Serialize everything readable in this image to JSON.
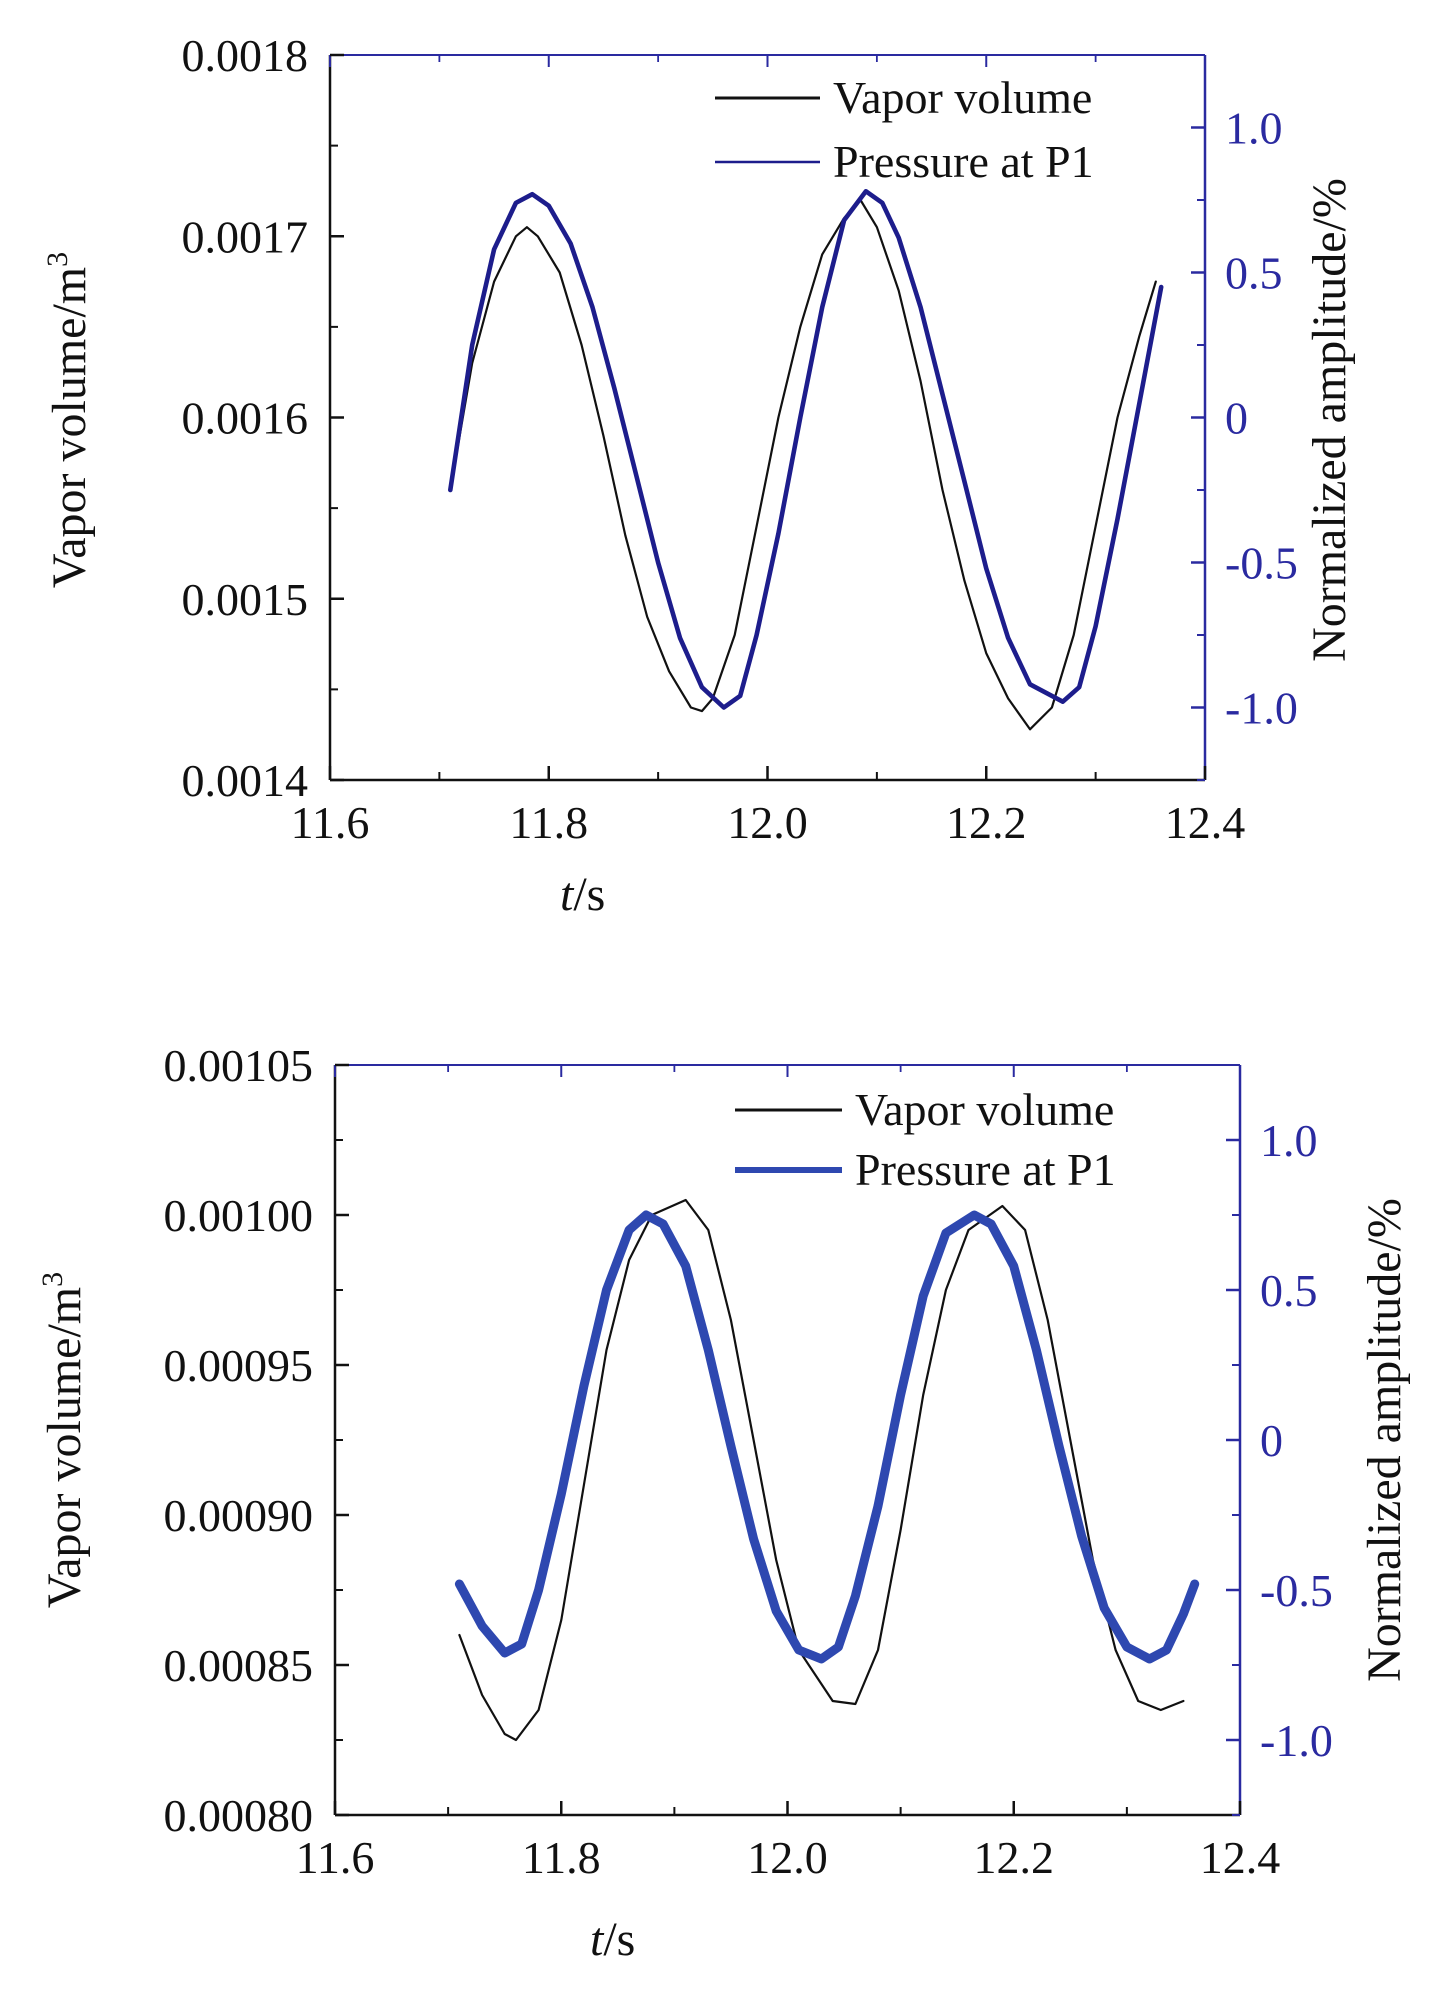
{
  "chart_data": [
    {
      "type": "line",
      "title": "",
      "xlabel": "t/s",
      "xlabel_parts": {
        "var": "t",
        "unit": "/s"
      },
      "ylabel": "Vapor volume/m3",
      "ylabel_parts": {
        "text": "Vapor volume/m",
        "sup": "3"
      },
      "y2label": "Normalized amplitude/%",
      "xlim": [
        11.6,
        12.4
      ],
      "ylim": [
        0.0014,
        0.0018
      ],
      "y2lim": [
        -1.25,
        1.25
      ],
      "xticks": [
        "11.6",
        "11.8",
        "12.0",
        "12.2",
        "12.4"
      ],
      "yticks": [
        "0.0018",
        "0.0017",
        "0.0016",
        "0.0015",
        "0.0014"
      ],
      "y2ticks": [
        "1.0",
        "0.5",
        "0",
        "-0.5",
        "-1.0"
      ],
      "legend_position": "top-right",
      "grid": false,
      "series": [
        {
          "name": "Vapor volume",
          "axis": "left",
          "color": "#111111",
          "points": [
            [
              11.71,
              0.00156
            ],
            [
              11.73,
              0.00163
            ],
            [
              11.75,
              0.001675
            ],
            [
              11.77,
              0.0017
            ],
            [
              11.78,
              0.001705
            ],
            [
              11.79,
              0.0017
            ],
            [
              11.81,
              0.00168
            ],
            [
              11.83,
              0.00164
            ],
            [
              11.85,
              0.00159
            ],
            [
              11.87,
              0.001535
            ],
            [
              11.89,
              0.00149
            ],
            [
              11.91,
              0.00146
            ],
            [
              11.93,
              0.00144
            ],
            [
              11.94,
              0.001438
            ],
            [
              11.95,
              0.001445
            ],
            [
              11.97,
              0.00148
            ],
            [
              11.99,
              0.00154
            ],
            [
              12.01,
              0.0016
            ],
            [
              12.03,
              0.00165
            ],
            [
              12.05,
              0.00169
            ],
            [
              12.07,
              0.00171
            ],
            [
              12.085,
              0.00172
            ],
            [
              12.1,
              0.001705
            ],
            [
              12.12,
              0.00167
            ],
            [
              12.14,
              0.00162
            ],
            [
              12.16,
              0.00156
            ],
            [
              12.18,
              0.00151
            ],
            [
              12.2,
              0.00147
            ],
            [
              12.22,
              0.001445
            ],
            [
              12.24,
              0.001428
            ],
            [
              12.26,
              0.00144
            ],
            [
              12.28,
              0.00148
            ],
            [
              12.3,
              0.00154
            ],
            [
              12.32,
              0.0016
            ],
            [
              12.34,
              0.001645
            ],
            [
              12.355,
              0.001675
            ]
          ]
        },
        {
          "name": "Pressure at P1",
          "axis": "right",
          "color": "#1d1d8c",
          "points": [
            [
              11.71,
              -0.25
            ],
            [
              11.73,
              0.25
            ],
            [
              11.75,
              0.58
            ],
            [
              11.77,
              0.74
            ],
            [
              11.785,
              0.77
            ],
            [
              11.8,
              0.73
            ],
            [
              11.82,
              0.6
            ],
            [
              11.84,
              0.38
            ],
            [
              11.86,
              0.1
            ],
            [
              11.88,
              -0.2
            ],
            [
              11.9,
              -0.5
            ],
            [
              11.92,
              -0.76
            ],
            [
              11.94,
              -0.93
            ],
            [
              11.96,
              -1.0
            ],
            [
              11.975,
              -0.96
            ],
            [
              11.99,
              -0.75
            ],
            [
              12.01,
              -0.4
            ],
            [
              12.03,
              0.0
            ],
            [
              12.05,
              0.38
            ],
            [
              12.07,
              0.68
            ],
            [
              12.09,
              0.78
            ],
            [
              12.105,
              0.74
            ],
            [
              12.12,
              0.62
            ],
            [
              12.14,
              0.38
            ],
            [
              12.16,
              0.08
            ],
            [
              12.18,
              -0.22
            ],
            [
              12.2,
              -0.52
            ],
            [
              12.22,
              -0.76
            ],
            [
              12.24,
              -0.92
            ],
            [
              12.27,
              -0.98
            ],
            [
              12.285,
              -0.93
            ],
            [
              12.3,
              -0.72
            ],
            [
              12.32,
              -0.35
            ],
            [
              12.34,
              0.05
            ],
            [
              12.36,
              0.45
            ]
          ]
        }
      ]
    },
    {
      "type": "line",
      "title": "",
      "xlabel": "t/s",
      "xlabel_parts": {
        "var": "t",
        "unit": "/s"
      },
      "ylabel": "Vapor volume/m3",
      "ylabel_parts": {
        "text": "Vapor volume/m",
        "sup": "3"
      },
      "y2label": "Normalized amplitude/%",
      "xlim": [
        11.6,
        12.4
      ],
      "ylim": [
        0.0008,
        0.00105
      ],
      "y2lim": [
        -1.25,
        1.25
      ],
      "xticks": [
        "11.6",
        "11.8",
        "12.0",
        "12.2",
        "12.4"
      ],
      "yticks": [
        "0.00105",
        "0.00100",
        "0.00095",
        "0.00090",
        "0.00085",
        "0.00080"
      ],
      "y2ticks": [
        "1.0",
        "0.5",
        "0",
        "-0.5",
        "-1.0"
      ],
      "legend_position": "top-right",
      "grid": false,
      "series": [
        {
          "name": "Vapor volume",
          "axis": "left",
          "color": "#111111",
          "points": [
            [
              11.71,
              0.00086
            ],
            [
              11.73,
              0.00084
            ],
            [
              11.75,
              0.000827
            ],
            [
              11.76,
              0.000825
            ],
            [
              11.78,
              0.000835
            ],
            [
              11.8,
              0.000865
            ],
            [
              11.82,
              0.00091
            ],
            [
              11.84,
              0.000955
            ],
            [
              11.86,
              0.000985
            ],
            [
              11.88,
              0.001
            ],
            [
              11.91,
              0.001005
            ],
            [
              11.93,
              0.000995
            ],
            [
              11.95,
              0.000965
            ],
            [
              11.97,
              0.000925
            ],
            [
              11.99,
              0.000885
            ],
            [
              12.01,
              0.000855
            ],
            [
              12.04,
              0.000838
            ],
            [
              12.06,
              0.000837
            ],
            [
              12.08,
              0.000855
            ],
            [
              12.1,
              0.000895
            ],
            [
              12.12,
              0.00094
            ],
            [
              12.14,
              0.000975
            ],
            [
              12.16,
              0.000995
            ],
            [
              12.19,
              0.001003
            ],
            [
              12.21,
              0.000995
            ],
            [
              12.23,
              0.000965
            ],
            [
              12.25,
              0.000925
            ],
            [
              12.27,
              0.000885
            ],
            [
              12.29,
              0.000855
            ],
            [
              12.31,
              0.000838
            ],
            [
              12.33,
              0.000835
            ],
            [
              12.35,
              0.000838
            ]
          ]
        },
        {
          "name": "Pressure at P1",
          "axis": "right",
          "color": "#2e48b0",
          "points": [
            [
              11.71,
              -0.48
            ],
            [
              11.73,
              -0.62
            ],
            [
              11.75,
              -0.71
            ],
            [
              11.765,
              -0.68
            ],
            [
              11.78,
              -0.5
            ],
            [
              11.8,
              -0.18
            ],
            [
              11.82,
              0.18
            ],
            [
              11.84,
              0.5
            ],
            [
              11.86,
              0.7
            ],
            [
              11.875,
              0.75
            ],
            [
              11.89,
              0.72
            ],
            [
              11.91,
              0.58
            ],
            [
              11.93,
              0.3
            ],
            [
              11.95,
              -0.02
            ],
            [
              11.97,
              -0.33
            ],
            [
              11.99,
              -0.57
            ],
            [
              12.01,
              -0.7
            ],
            [
              12.03,
              -0.73
            ],
            [
              12.045,
              -0.69
            ],
            [
              12.06,
              -0.52
            ],
            [
              12.08,
              -0.22
            ],
            [
              12.1,
              0.15
            ],
            [
              12.12,
              0.48
            ],
            [
              12.14,
              0.69
            ],
            [
              12.165,
              0.75
            ],
            [
              12.18,
              0.72
            ],
            [
              12.2,
              0.58
            ],
            [
              12.22,
              0.3
            ],
            [
              12.24,
              -0.02
            ],
            [
              12.26,
              -0.32
            ],
            [
              12.28,
              -0.56
            ],
            [
              12.3,
              -0.69
            ],
            [
              12.32,
              -0.73
            ],
            [
              12.335,
              -0.7
            ],
            [
              12.35,
              -0.58
            ],
            [
              12.36,
              -0.48
            ]
          ]
        }
      ]
    }
  ]
}
